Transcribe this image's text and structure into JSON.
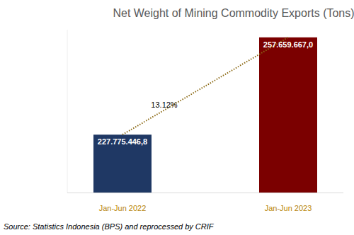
{
  "chart_data": {
    "type": "bar",
    "title": "Net Weight of Mining Commodity Exports (Tons)",
    "categories": [
      "Jan-Jun 2022",
      "Jan-Jun 2023"
    ],
    "values": [
      227775446.8,
      257659667.0
    ],
    "value_labels": [
      "227.775.446,8",
      "257.659.667,0"
    ],
    "colors": [
      "#1f3864",
      "#7b0000"
    ],
    "ylim": [
      210000000,
      260000000
    ],
    "tick_labels": false,
    "data_labels": true,
    "annotation": "13.12%",
    "source": "Source: Statistics Indonesia (BPS) and reprocessed by CRIF"
  }
}
